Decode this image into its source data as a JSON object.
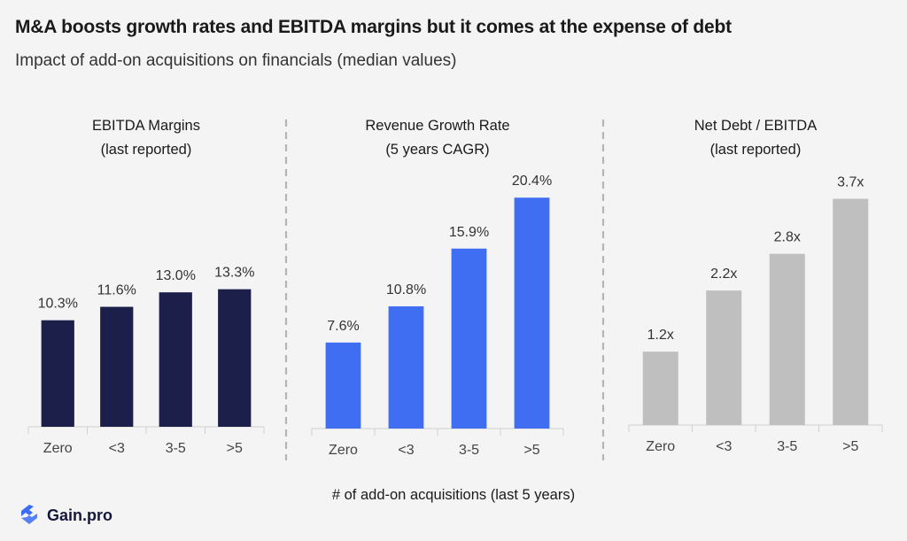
{
  "title": "M&A boosts growth rates and EBITDA margins but it comes at the expense of debt",
  "subtitle": "Impact of add-on acquisitions on financials (median values)",
  "x_axis_title": "# of add-on acquisitions (last 5 years)",
  "brand": {
    "name": "Gain.pro",
    "color": "#3a6cf4"
  },
  "chart_data": [
    {
      "type": "bar",
      "title_lines": [
        "EBITDA Margins",
        "(last reported)"
      ],
      "categories": [
        "Zero",
        "<3",
        "3-5",
        ">5"
      ],
      "values": [
        10.3,
        11.6,
        13.0,
        13.3
      ],
      "labels": [
        "10.3%",
        "11.6%",
        "13.0%",
        "13.3%"
      ],
      "unit": "%",
      "color": "#1c1f4a",
      "ylim": [
        0,
        25
      ]
    },
    {
      "type": "bar",
      "title_lines": [
        "Revenue Growth Rate",
        "(5 years CAGR)"
      ],
      "categories": [
        "Zero",
        "<3",
        "3-5",
        ">5"
      ],
      "values": [
        7.6,
        10.8,
        15.9,
        20.4
      ],
      "labels": [
        "7.6%",
        "10.8%",
        "15.9%",
        "20.4%"
      ],
      "unit": "%",
      "color": "#3f6ef2",
      "ylim": [
        0,
        23
      ]
    },
    {
      "type": "bar",
      "title_lines": [
        "Net Debt / EBITDA",
        "(last reported)"
      ],
      "categories": [
        "Zero",
        "<3",
        "3-5",
        ">5"
      ],
      "values": [
        1.2,
        2.2,
        2.8,
        3.7
      ],
      "labels": [
        "1.2x",
        "2.2x",
        "2.8x",
        "3.7x"
      ],
      "unit": "x",
      "color": "#bfbfbf",
      "ylim": [
        0,
        4.2
      ]
    }
  ]
}
